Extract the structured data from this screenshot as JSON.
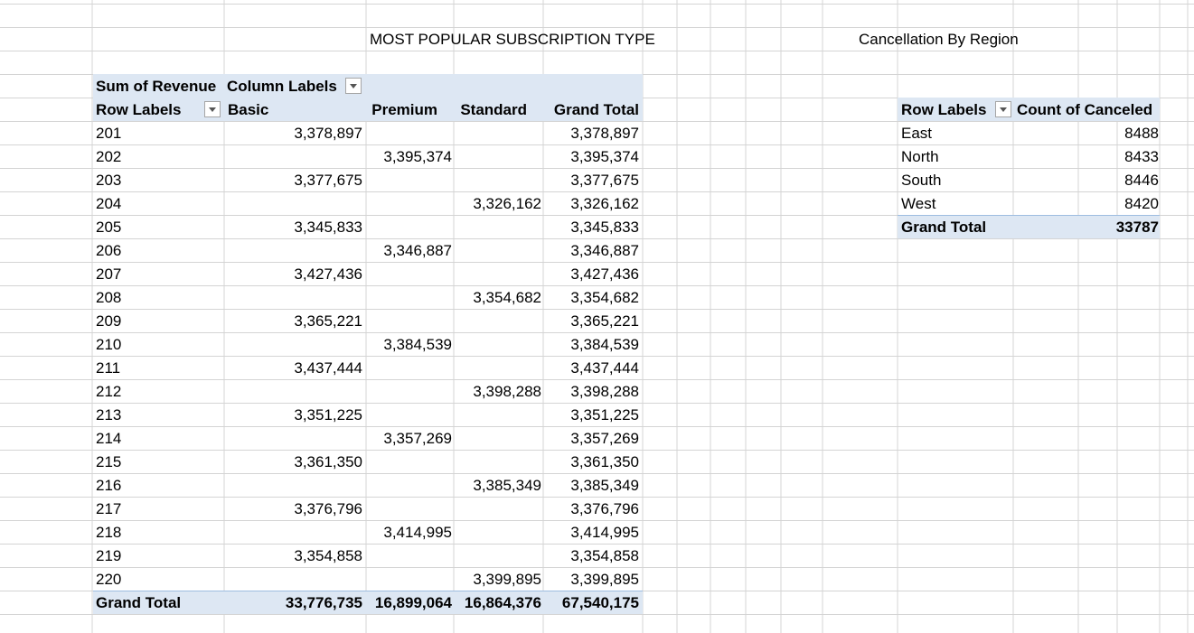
{
  "titles": {
    "main": "MOST POPULAR SUBSCRIPTION TYPE",
    "cancellation": "Cancellation By Region"
  },
  "pivot1": {
    "value_label": "Sum of Revenue",
    "column_labels": "Column Labels",
    "row_labels": "Row Labels",
    "columns": [
      "Basic",
      "Premium",
      "Standard",
      "Grand Total"
    ],
    "rows": [
      {
        "label": "201",
        "basic": "3,378,897",
        "premium": "",
        "standard": "",
        "total": "3,378,897"
      },
      {
        "label": "202",
        "basic": "",
        "premium": "3,395,374",
        "standard": "",
        "total": "3,395,374"
      },
      {
        "label": "203",
        "basic": "3,377,675",
        "premium": "",
        "standard": "",
        "total": "3,377,675"
      },
      {
        "label": "204",
        "basic": "",
        "premium": "",
        "standard": "3,326,162",
        "total": "3,326,162"
      },
      {
        "label": "205",
        "basic": "3,345,833",
        "premium": "",
        "standard": "",
        "total": "3,345,833"
      },
      {
        "label": "206",
        "basic": "",
        "premium": "3,346,887",
        "standard": "",
        "total": "3,346,887"
      },
      {
        "label": "207",
        "basic": "3,427,436",
        "premium": "",
        "standard": "",
        "total": "3,427,436"
      },
      {
        "label": "208",
        "basic": "",
        "premium": "",
        "standard": "3,354,682",
        "total": "3,354,682"
      },
      {
        "label": "209",
        "basic": "3,365,221",
        "premium": "",
        "standard": "",
        "total": "3,365,221"
      },
      {
        "label": "210",
        "basic": "",
        "premium": "3,384,539",
        "standard": "",
        "total": "3,384,539"
      },
      {
        "label": "211",
        "basic": "3,437,444",
        "premium": "",
        "standard": "",
        "total": "3,437,444"
      },
      {
        "label": "212",
        "basic": "",
        "premium": "",
        "standard": "3,398,288",
        "total": "3,398,288"
      },
      {
        "label": "213",
        "basic": "3,351,225",
        "premium": "",
        "standard": "",
        "total": "3,351,225"
      },
      {
        "label": "214",
        "basic": "",
        "premium": "3,357,269",
        "standard": "",
        "total": "3,357,269"
      },
      {
        "label": "215",
        "basic": "3,361,350",
        "premium": "",
        "standard": "",
        "total": "3,361,350"
      },
      {
        "label": "216",
        "basic": "",
        "premium": "",
        "standard": "3,385,349",
        "total": "3,385,349"
      },
      {
        "label": "217",
        "basic": "3,376,796",
        "premium": "",
        "standard": "",
        "total": "3,376,796"
      },
      {
        "label": "218",
        "basic": "",
        "premium": "3,414,995",
        "standard": "",
        "total": "3,414,995"
      },
      {
        "label": "219",
        "basic": "3,354,858",
        "premium": "",
        "standard": "",
        "total": "3,354,858"
      },
      {
        "label": "220",
        "basic": "",
        "premium": "",
        "standard": "3,399,895",
        "total": "3,399,895"
      }
    ],
    "grand_total": {
      "label": "Grand Total",
      "basic": "33,776,735",
      "premium": "16,899,064",
      "standard": "16,864,376",
      "total": "67,540,175"
    }
  },
  "pivot2": {
    "row_labels": "Row Labels",
    "value_label": "Count of Canceled",
    "rows": [
      {
        "label": "East",
        "count": "8488"
      },
      {
        "label": "North",
        "count": "8433"
      },
      {
        "label": "South",
        "count": "8446"
      },
      {
        "label": "West",
        "count": "8420"
      }
    ],
    "grand_total": {
      "label": "Grand Total",
      "count": "33787"
    }
  },
  "colors": {
    "band": "#dde7f3",
    "band_line": "#9dbde0",
    "gridline": "#d4d4d4"
  },
  "icons": {
    "dropdown": "filter-dropdown-icon"
  }
}
